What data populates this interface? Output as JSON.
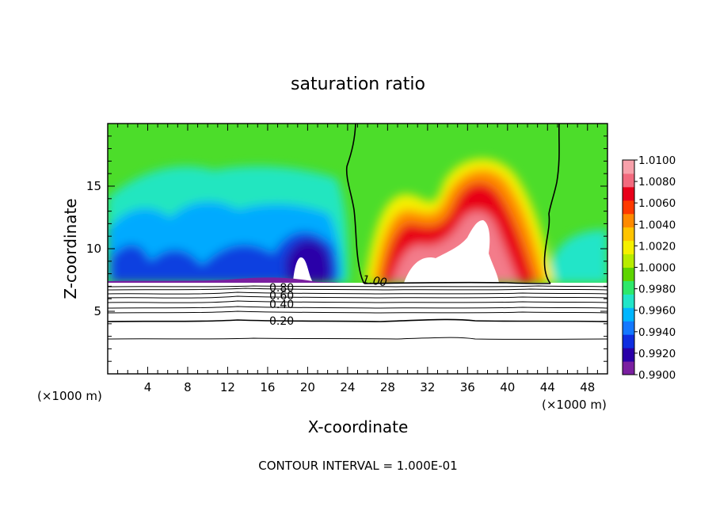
{
  "chart_data": {
    "type": "heatmap",
    "title": "saturation ratio",
    "xlabel": "X-coordinate",
    "ylabel": "Z-coordinate",
    "x_unit_left": "(×1000 m)",
    "x_unit_right": "(×1000 m)",
    "xlim": [
      0,
      50
    ],
    "ylim": [
      0,
      20
    ],
    "x_ticks": [
      4,
      8,
      12,
      16,
      20,
      24,
      28,
      32,
      36,
      40,
      44,
      48
    ],
    "y_ticks": [
      5,
      10,
      15
    ],
    "footer": "CONTOUR INTERVAL = 1.000E-01",
    "colorbar": {
      "min": 0.99,
      "max": 1.01,
      "tick_labels": [
        "1.0100",
        "1.0080",
        "1.0060",
        "1.0040",
        "1.0020",
        "1.0000",
        "0.9980",
        "0.9960",
        "0.9940",
        "0.9920",
        "0.9900"
      ],
      "colors": [
        "#7a1fa0",
        "#2a00a8",
        "#0f2ee0",
        "#1478ff",
        "#00b6ff",
        "#22e5c8",
        "#2ee86a",
        "#5ed400",
        "#b7ec00",
        "#f5f000",
        "#ffc400",
        "#ff8a00",
        "#ff3a00",
        "#e8001a",
        "#f26a7e",
        "#f7a0aa"
      ]
    },
    "contours": [
      {
        "level": 1.0,
        "label": "1.00"
      },
      {
        "level": 0.8,
        "label": "0.80"
      },
      {
        "level": 0.6,
        "label": "0.60"
      },
      {
        "level": 0.4,
        "label": "0.40"
      },
      {
        "level": 0.2,
        "label": "0.20"
      }
    ],
    "surface_height_km": 7.2
  }
}
